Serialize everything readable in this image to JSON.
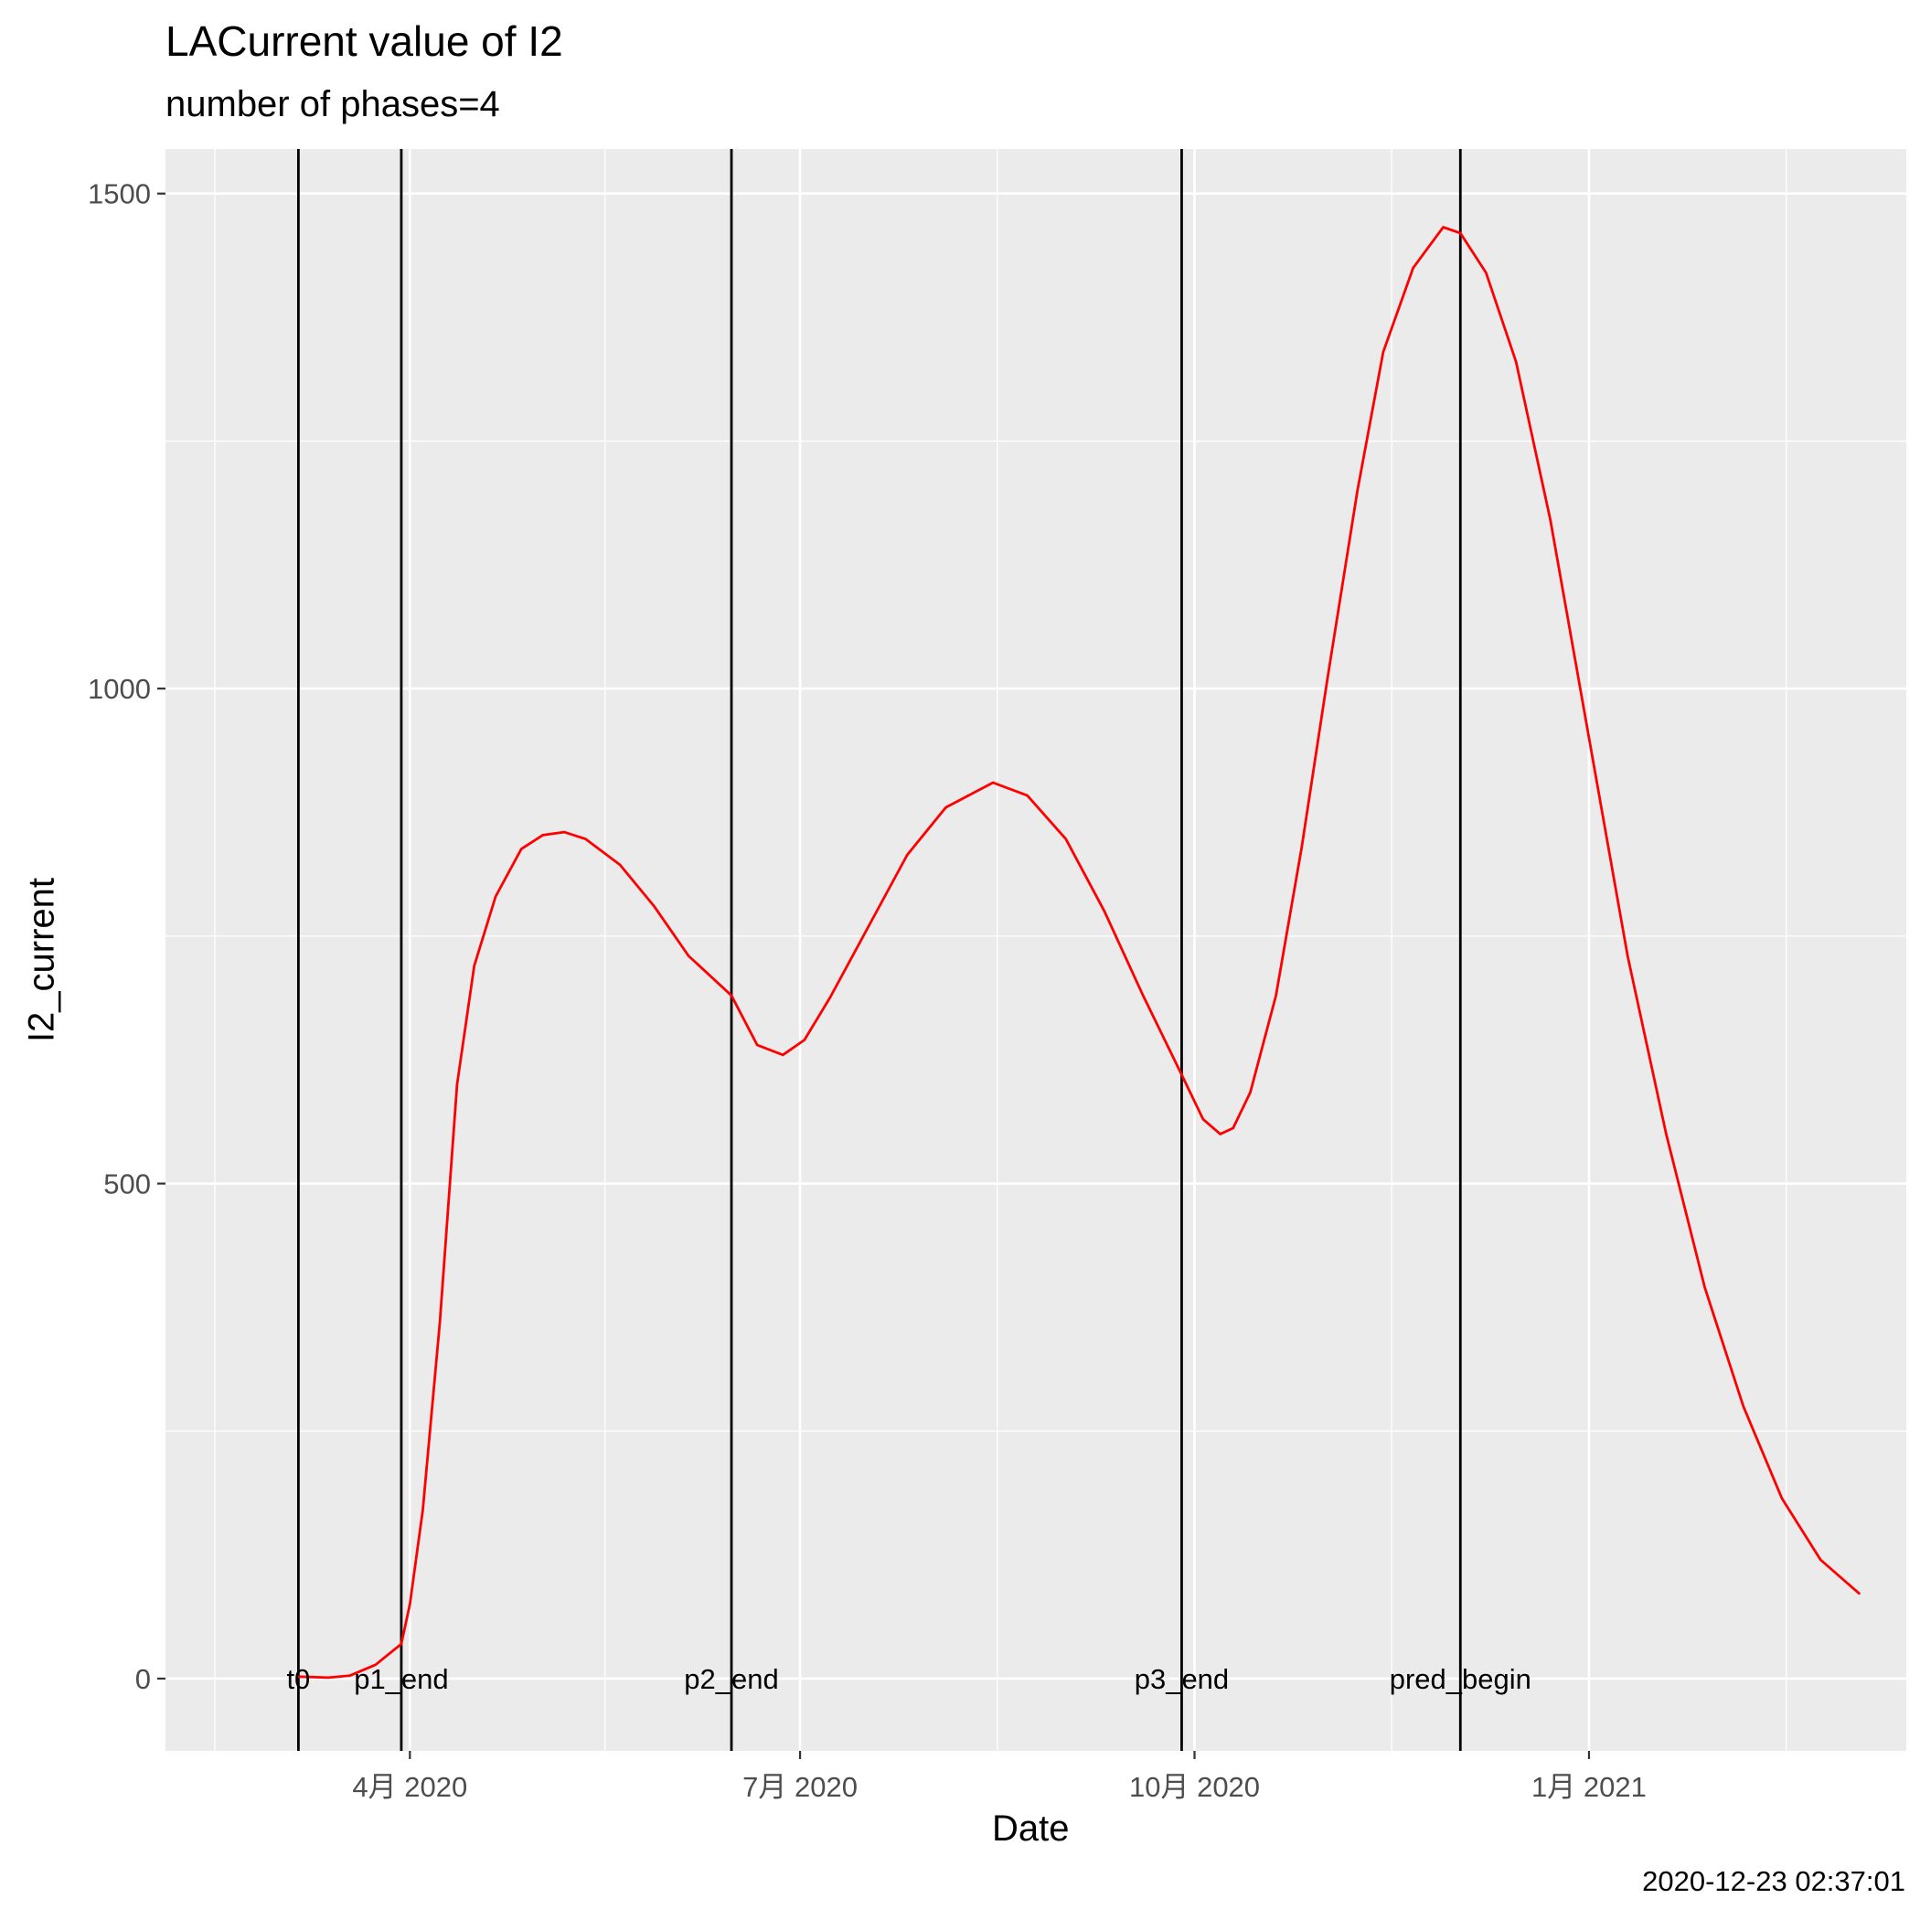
{
  "chart_data": {
    "type": "line",
    "title": "LACurrent value of I2",
    "subtitle": "number of phases=4",
    "xlabel": "Date",
    "ylabel": "I2_current",
    "caption": "2020-12-23 02:37:01",
    "x_ticks": [
      {
        "date": "2020-04-01",
        "label": "4月 2020"
      },
      {
        "date": "2020-07-01",
        "label": "7月 2020"
      },
      {
        "date": "2020-10-01",
        "label": "10月 2020"
      },
      {
        "date": "2021-01-01",
        "label": "1月 2021"
      }
    ],
    "y_ticks": [
      0,
      500,
      1000,
      1500
    ],
    "xlim": [
      "2020-02-04",
      "2021-03-16"
    ],
    "ylim": [
      -73,
      1545
    ],
    "grid": true,
    "vlines": [
      {
        "date": "2020-03-06",
        "label": "t0"
      },
      {
        "date": "2020-03-30",
        "label": "p1_end"
      },
      {
        "date": "2020-06-15",
        "label": "p2_end"
      },
      {
        "date": "2020-09-28",
        "label": "p3_end"
      },
      {
        "date": "2020-12-02",
        "label": "pred_begin"
      }
    ],
    "series": [
      {
        "color": "#ff0000",
        "points": [
          [
            "2020-03-06",
            2
          ],
          [
            "2020-03-13",
            1
          ],
          [
            "2020-03-18",
            3
          ],
          [
            "2020-03-24",
            14
          ],
          [
            "2020-03-30",
            35
          ],
          [
            "2020-04-01",
            75
          ],
          [
            "2020-04-04",
            170
          ],
          [
            "2020-04-08",
            360
          ],
          [
            "2020-04-12",
            600
          ],
          [
            "2020-04-16",
            720
          ],
          [
            "2020-04-21",
            790
          ],
          [
            "2020-04-27",
            838
          ],
          [
            "2020-05-02",
            852
          ],
          [
            "2020-05-07",
            855
          ],
          [
            "2020-05-12",
            848
          ],
          [
            "2020-05-20",
            822
          ],
          [
            "2020-05-28",
            780
          ],
          [
            "2020-06-05",
            730
          ],
          [
            "2020-06-15",
            690
          ],
          [
            "2020-06-21",
            640
          ],
          [
            "2020-06-27",
            630
          ],
          [
            "2020-07-02",
            645
          ],
          [
            "2020-07-08",
            688
          ],
          [
            "2020-07-17",
            760
          ],
          [
            "2020-07-26",
            832
          ],
          [
            "2020-08-04",
            880
          ],
          [
            "2020-08-15",
            905
          ],
          [
            "2020-08-23",
            892
          ],
          [
            "2020-09-01",
            848
          ],
          [
            "2020-09-10",
            775
          ],
          [
            "2020-09-19",
            690
          ],
          [
            "2020-09-28",
            610
          ],
          [
            "2020-10-03",
            565
          ],
          [
            "2020-10-07",
            550
          ],
          [
            "2020-10-10",
            556
          ],
          [
            "2020-10-14",
            592
          ],
          [
            "2020-10-20",
            690
          ],
          [
            "2020-10-26",
            840
          ],
          [
            "2020-11-01",
            1010
          ],
          [
            "2020-11-08",
            1200
          ],
          [
            "2020-11-14",
            1340
          ],
          [
            "2020-11-21",
            1425
          ],
          [
            "2020-11-28",
            1466
          ],
          [
            "2020-12-02",
            1460
          ],
          [
            "2020-12-08",
            1420
          ],
          [
            "2020-12-15",
            1330
          ],
          [
            "2020-12-23",
            1170
          ],
          [
            "2021-01-01",
            950
          ],
          [
            "2021-01-10",
            730
          ],
          [
            "2021-01-19",
            550
          ],
          [
            "2021-01-28",
            395
          ],
          [
            "2021-02-06",
            275
          ],
          [
            "2021-02-15",
            182
          ],
          [
            "2021-02-24",
            120
          ],
          [
            "2021-03-05",
            86
          ]
        ]
      }
    ]
  }
}
